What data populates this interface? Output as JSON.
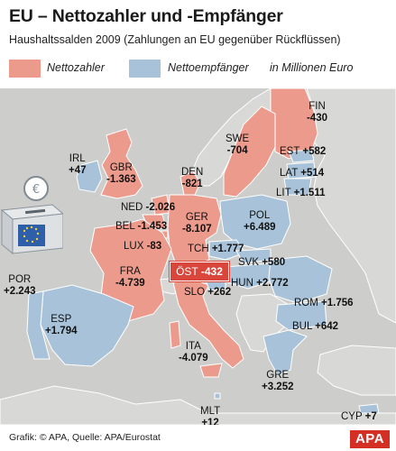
{
  "header": {
    "title": "EU – Nettozahler und -Empfänger",
    "subtitle": "Haushaltssalden 2009 (Zahlungen an EU gegenüber Rückflüssen)"
  },
  "legend": {
    "payer_label": "Nettozahler",
    "receiver_label": "Nettoempfänger",
    "unit_label": "in Millionen Euro"
  },
  "colors": {
    "payer": "#ec9a8c",
    "receiver": "#a8c3d9",
    "non_eu": "#d8d8d6",
    "sea": "#cdcdcb",
    "highlight": "#d9463b",
    "logo": "#d42e25"
  },
  "countries": [
    {
      "code": "FIN",
      "value": "-430"
    },
    {
      "code": "SWE",
      "value": "-704"
    },
    {
      "code": "EST",
      "value": "+582"
    },
    {
      "code": "LAT",
      "value": "+514"
    },
    {
      "code": "LIT",
      "value": "+1.511"
    },
    {
      "code": "IRL",
      "value": "+47"
    },
    {
      "code": "GBR",
      "value": "-1.363"
    },
    {
      "code": "DEN",
      "value": "-821"
    },
    {
      "code": "NED",
      "value": "-2.026"
    },
    {
      "code": "BEL",
      "value": "-1.453"
    },
    {
      "code": "GER",
      "value": "-8.107"
    },
    {
      "code": "POL",
      "value": "+6.489"
    },
    {
      "code": "LUX",
      "value": "-83"
    },
    {
      "code": "TCH",
      "value": "+1.777"
    },
    {
      "code": "SVK",
      "value": "+580"
    },
    {
      "code": "POR",
      "value": "+2.243"
    },
    {
      "code": "FRA",
      "value": "-4.739"
    },
    {
      "code": "HUN",
      "value": "+2.772"
    },
    {
      "code": "SLO",
      "value": "+262"
    },
    {
      "code": "ESP",
      "value": "+1.794"
    },
    {
      "code": "ROM",
      "value": "+1.756"
    },
    {
      "code": "BUL",
      "value": "+642"
    },
    {
      "code": "ITA",
      "value": "-4.079"
    },
    {
      "code": "GRE",
      "value": "+3.252"
    },
    {
      "code": "MLT",
      "value": "+12"
    },
    {
      "code": "CYP",
      "value": "+7"
    }
  ],
  "highlight": {
    "code": "ÖST",
    "value": "-432"
  },
  "footer": {
    "credit": "Grafik: © APA, Quelle: APA/Eurostat",
    "logo": "APA"
  },
  "icons": [
    "ballot-box-icon",
    "euro-coin-icon",
    "eu-flag-icon"
  ]
}
